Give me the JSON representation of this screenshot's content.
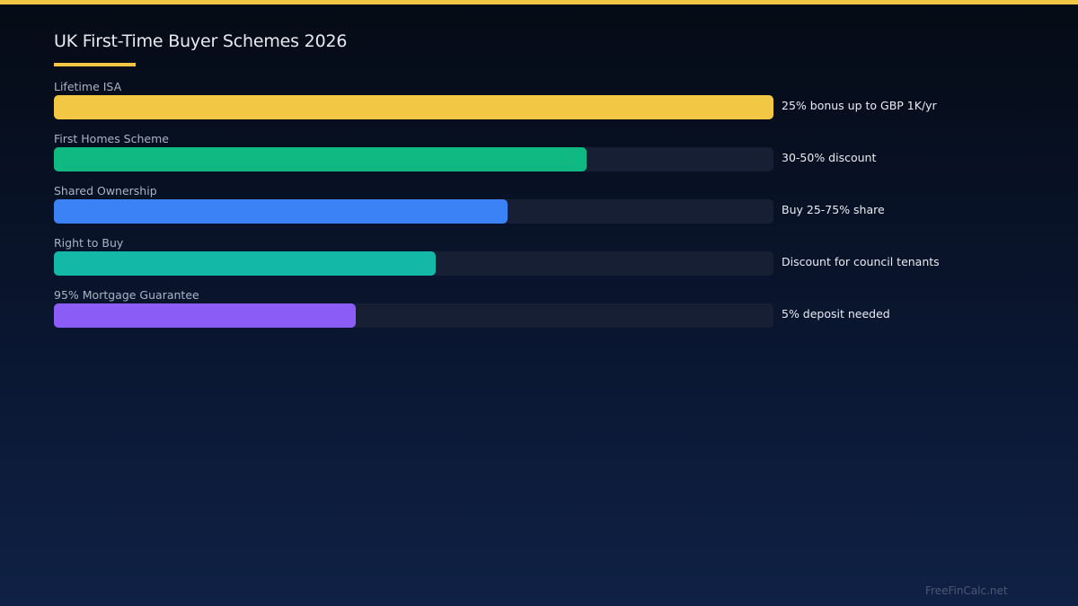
{
  "header": {
    "title": "UK First-Time Buyer Schemes 2026"
  },
  "footer": {
    "watermark": "FreeFinCalc.net"
  },
  "colors": {
    "accent": "#f2c744",
    "track": "#161f33"
  },
  "chart_data": {
    "type": "bar",
    "orientation": "horizontal",
    "title": "UK First-Time Buyer Schemes 2026",
    "xlabel": "",
    "ylabel": "",
    "xlim": [
      0,
      100
    ],
    "grid": false,
    "legend": "none",
    "categories": [
      "Lifetime ISA",
      "First Homes Scheme",
      "Shared Ownership",
      "Right to Buy",
      "95% Mortgage Guarantee"
    ],
    "values": [
      100,
      74,
      63,
      53,
      42
    ],
    "annotations": [
      "25% bonus up to GBP 1K/yr",
      "30-50% discount",
      "Buy 25-75% share",
      "Discount for council tenants",
      "5% deposit needed"
    ],
    "colors": [
      "#f2c744",
      "#10b981",
      "#3b82f6",
      "#14b8a6",
      "#8b5cf6"
    ]
  }
}
